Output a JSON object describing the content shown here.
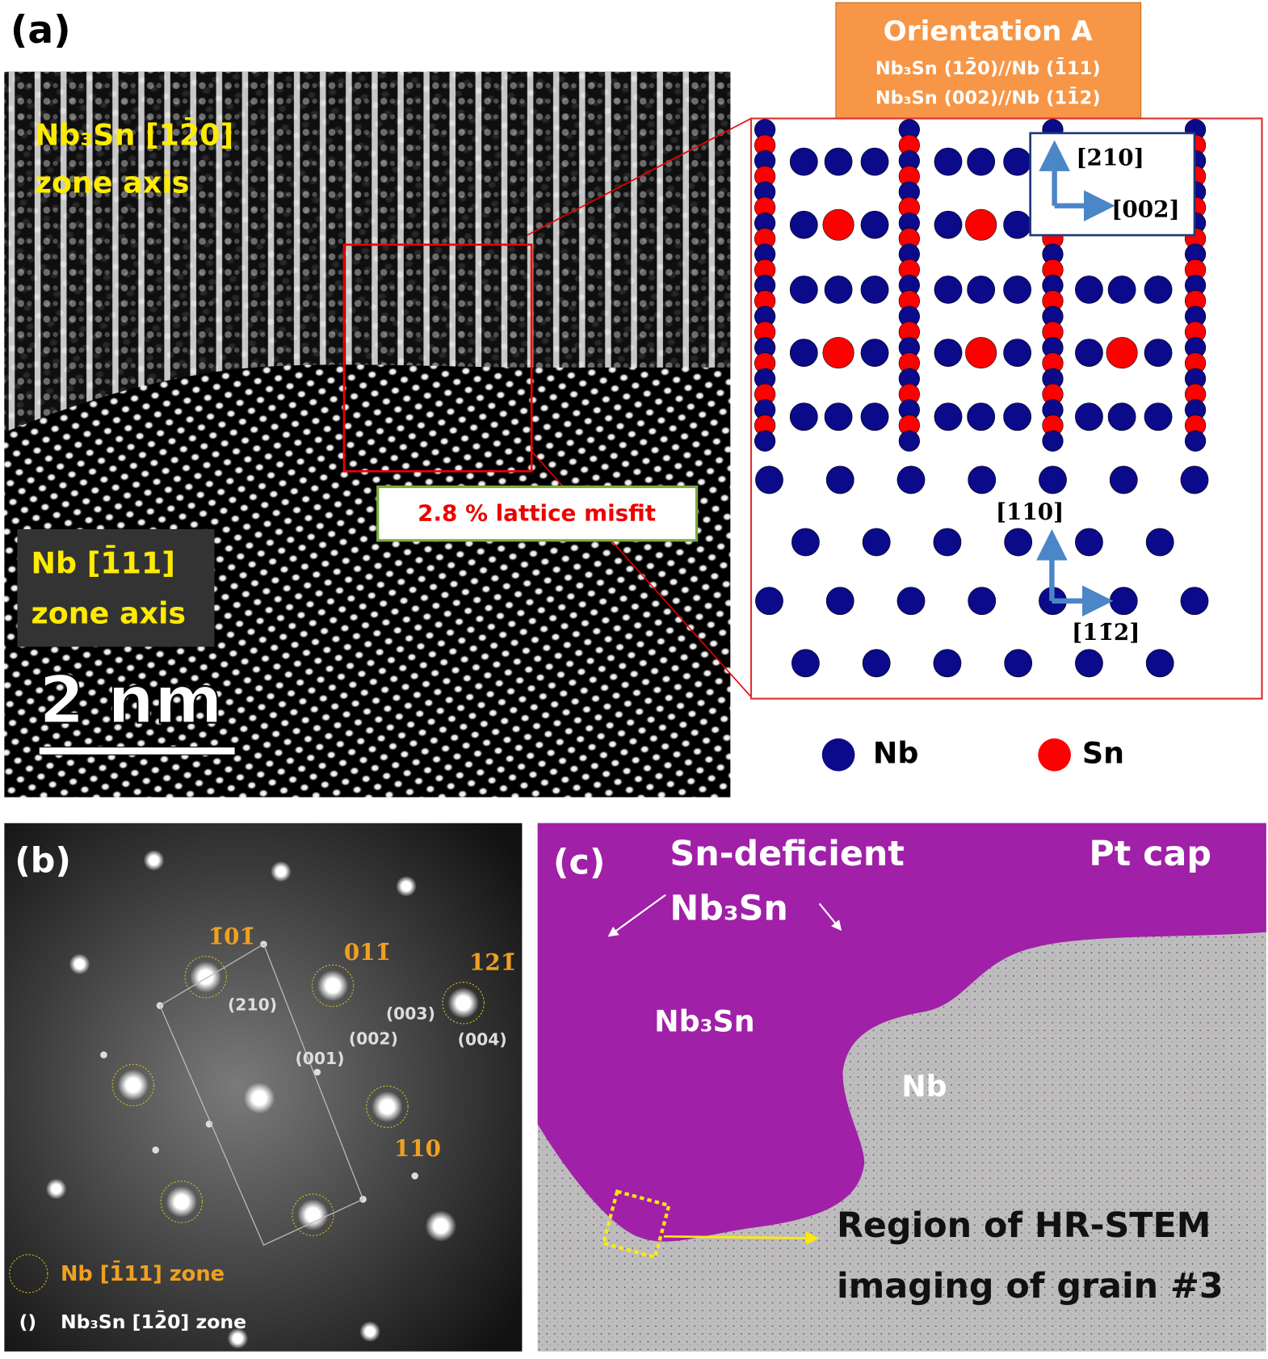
{
  "panel_a": {
    "label": "(a)",
    "zone_top": [
      "Nb₃Sn [12̄0]",
      "zone axis"
    ],
    "zone_bottom": [
      "Nb [1̄11]",
      "zone axis"
    ],
    "scale_bar": "2 nm",
    "misfit": "2.8 % lattice misfit",
    "orientation": {
      "title": "Orientation A",
      "lines": [
        "Nb₃Sn (12̄0)//Nb (1̄11)",
        "Nb₃Sn (002)//Nb (11̄2)"
      ]
    },
    "directions_top": [
      "[210]",
      "[002]"
    ],
    "directions_bottom": [
      "[110]",
      "[11̄2]"
    ],
    "legend": [
      "Nb",
      "Sn"
    ]
  },
  "panel_b": {
    "label": "(b)",
    "nb_spots": [
      "1̄01̄",
      "011̄",
      "121̄",
      "110"
    ],
    "nb3sn_spots": [
      "(210)",
      "(003)",
      "(002)",
      "(001)",
      "(004)"
    ],
    "legend": [
      "Nb [1̄11] zone",
      "()",
      "Nb₃Sn [12̄0] zone"
    ]
  },
  "panel_c": {
    "label": "(c)",
    "labels": [
      "Sn-deficient",
      "Nb₃Sn",
      "Pt cap",
      "Nb₃Sn",
      "Nb"
    ],
    "region": [
      "Region of HR-STEM",
      "imaging of grain #3"
    ]
  }
}
